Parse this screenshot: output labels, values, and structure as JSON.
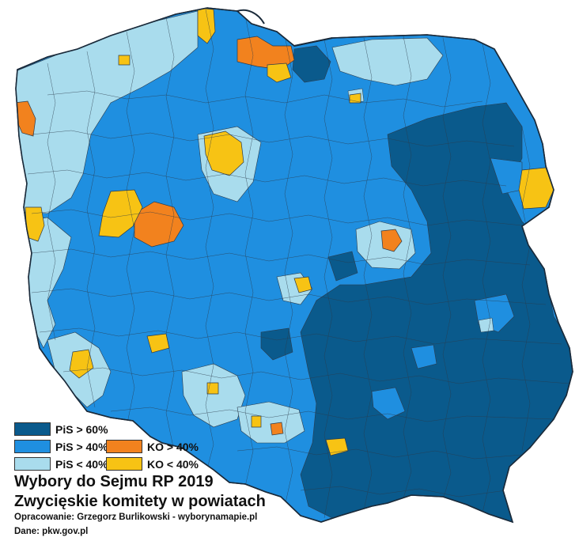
{
  "title": "Wybory do Sejmu RP 2019",
  "subtitle": "Zwycięskie komitety w powiatach",
  "credit_author": "Opracowanie: Grzegorz Burlikowski - wyborynamapie.pl",
  "credit_data": "Dane: pkw.gov.pl",
  "colors": {
    "pis_60": "#0a5a8c",
    "pis_40": "#1f8fe0",
    "pis_lt40": "#a9dced",
    "ko_40": "#f2821e",
    "ko_lt40": "#f7c314",
    "border": "#2b3a4a",
    "water": "#ffffff"
  },
  "legend": [
    {
      "label": "PiS > 60%",
      "color": "#0a5a8c"
    },
    {
      "label": "PiS > 40%",
      "color": "#1f8fe0"
    },
    {
      "label": "PiS < 40%",
      "color": "#a9dced"
    },
    {
      "label": "KO > 40%",
      "color": "#f2821e"
    },
    {
      "label": "KO < 40%",
      "color": "#f7c314"
    }
  ]
}
